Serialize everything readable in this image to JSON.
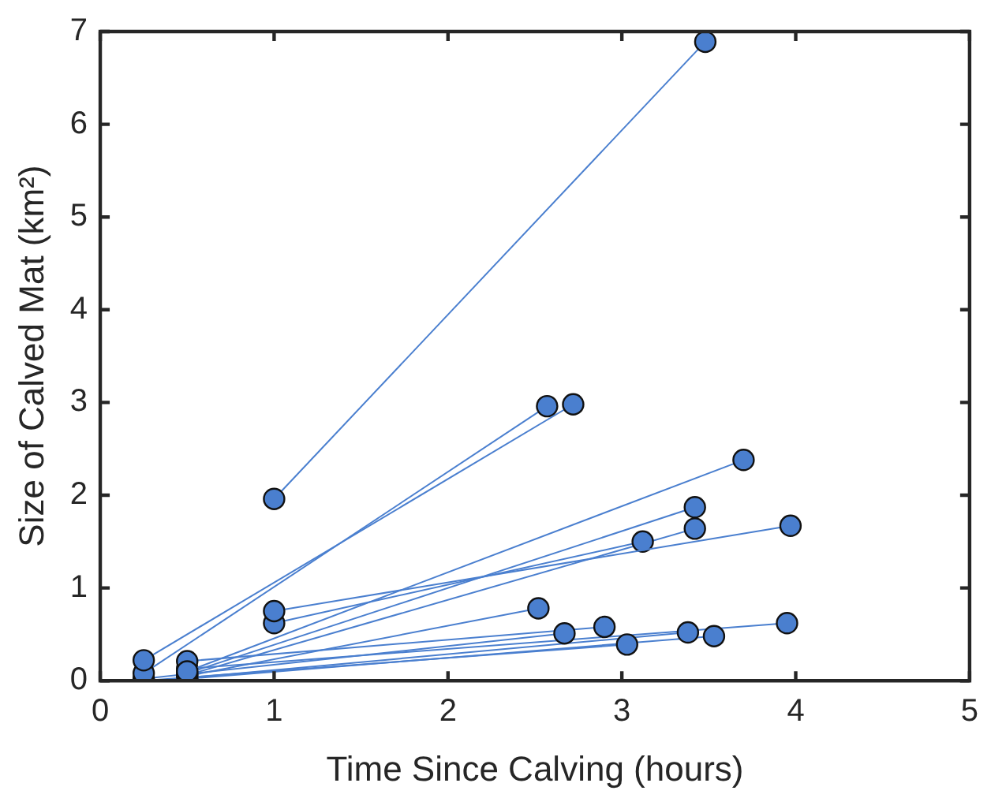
{
  "chart_data": {
    "type": "line",
    "xlabel": "Time Since Calving (hours)",
    "ylabel": "Size of Calved Mat (km²)",
    "xlim": [
      0,
      5
    ],
    "xticks": [
      0,
      1,
      2,
      3,
      4,
      5
    ],
    "ylim": [
      0,
      7
    ],
    "yticks": [
      0,
      1,
      2,
      3,
      4,
      5,
      6,
      7
    ],
    "grid": false,
    "legend": false,
    "marker": "circle",
    "line_style": "solid",
    "series": [
      {
        "color": "#4a7fcf",
        "x": [
          1,
          3.48
        ],
        "values": [
          1.96,
          6.89
        ]
      },
      {
        "color": "#4a7fcf",
        "x": [
          0.25,
          2.72
        ],
        "values": [
          0.22,
          2.98
        ]
      },
      {
        "color": "#4a7fcf",
        "x": [
          0.25,
          2.57
        ],
        "values": [
          0.08,
          2.96
        ]
      },
      {
        "color": "#4a7fcf",
        "x": [
          1,
          3.97
        ],
        "values": [
          0.75,
          1.67
        ]
      },
      {
        "color": "#4a7fcf",
        "x": [
          1,
          3.12
        ],
        "values": [
          0.62,
          1.5
        ]
      },
      {
        "color": "#4a7fcf",
        "x": [
          0.5,
          3.7
        ],
        "values": [
          0.1,
          2.38
        ]
      },
      {
        "color": "#4a7fcf",
        "x": [
          0.5,
          3.42
        ],
        "values": [
          0.08,
          1.87
        ]
      },
      {
        "color": "#4a7fcf",
        "x": [
          0.5,
          3.42
        ],
        "values": [
          0.06,
          1.64
        ]
      },
      {
        "color": "#4a7fcf",
        "x": [
          0.5,
          2.52
        ],
        "values": [
          0.05,
          0.78
        ]
      },
      {
        "color": "#4a7fcf",
        "x": [
          0.25,
          2.67
        ],
        "values": [
          0.02,
          0.51
        ]
      },
      {
        "color": "#4a7fcf",
        "x": [
          0.5,
          2.9
        ],
        "values": [
          0.21,
          0.58
        ]
      },
      {
        "color": "#4a7fcf",
        "x": [
          0.25,
          3.03
        ],
        "values": [
          0,
          0.39
        ]
      },
      {
        "color": "#4a7fcf",
        "x": [
          0.5,
          3.38
        ],
        "values": [
          0.03,
          0.52
        ]
      },
      {
        "color": "#4a7fcf",
        "x": [
          0.5,
          3.53
        ],
        "values": [
          0.02,
          0.48
        ]
      },
      {
        "color": "#4a7fcf",
        "x": [
          0.5,
          3.95
        ],
        "values": [
          0.13,
          0.62
        ]
      }
    ]
  }
}
